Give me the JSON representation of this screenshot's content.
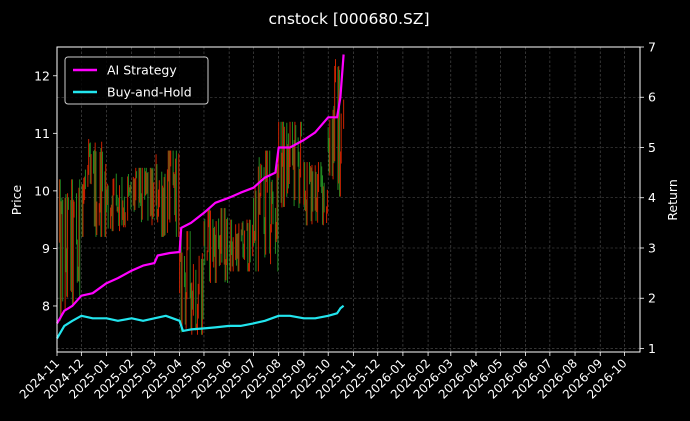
{
  "chart_data": {
    "type": "line",
    "title": "cnstock [000680.SZ]",
    "ylabel_left": "Price",
    "ylabel_right": "Return",
    "xlabel": "",
    "x_tick_labels": [
      "2024-11",
      "2024-12",
      "2025-01",
      "2025-02",
      "2025-03",
      "2025-04",
      "2025-05",
      "2025-06",
      "2025-07",
      "2025-08",
      "2025-09",
      "2025-10",
      "2025-11",
      "2025-12",
      "2026-01",
      "2026-02",
      "2026-03",
      "2026-04",
      "2026-05",
      "2026-06",
      "2026-07",
      "2026-08",
      "2026-09",
      "2026-10"
    ],
    "y_left_ticks": [
      8,
      9,
      10,
      11,
      12
    ],
    "y_right_ticks": [
      1,
      2,
      3,
      4,
      5,
      6,
      7
    ],
    "ylim_left": [
      7.2,
      12.5
    ],
    "ylim_right": [
      0.93,
      7.0
    ],
    "x_range": [
      "2024-11-01",
      "2026-10-20"
    ],
    "data_end": "2025-10-20",
    "grid": true,
    "legend_position": "top-left",
    "price_series": {
      "name": "",
      "colors": {
        "up": "#cc2200",
        "down": "#228b22"
      },
      "months": [
        "2024-11",
        "2024-12",
        "2025-01",
        "2025-02",
        "2025-03",
        "2025-04",
        "2025-05",
        "2025-06",
        "2025-07",
        "2025-08",
        "2025-09",
        "2025-10"
      ],
      "monthly_range": [
        [
          7.5,
          10.2
        ],
        [
          9.2,
          10.9
        ],
        [
          9.3,
          10.3
        ],
        [
          9.4,
          10.4
        ],
        [
          9.2,
          10.7
        ],
        [
          7.5,
          9.3
        ],
        [
          8.4,
          9.7
        ],
        [
          8.6,
          9.5
        ],
        [
          8.6,
          10.7
        ],
        [
          9.7,
          11.2
        ],
        [
          9.4,
          10.5
        ],
        [
          9.9,
          12.3
        ]
      ]
    },
    "series": [
      {
        "name": "AI Strategy",
        "axis": "right",
        "color": "#ff00ff",
        "x": [
          "2024-11-01",
          "2024-11-10",
          "2024-11-20",
          "2024-12-01",
          "2024-12-15",
          "2025-01-01",
          "2025-01-15",
          "2025-02-01",
          "2025-02-15",
          "2025-03-01",
          "2025-03-05",
          "2025-03-20",
          "2025-04-01",
          "2025-04-03",
          "2025-04-15",
          "2025-05-01",
          "2025-05-15",
          "2025-06-01",
          "2025-06-15",
          "2025-07-01",
          "2025-07-15",
          "2025-07-28",
          "2025-08-01",
          "2025-08-15",
          "2025-09-01",
          "2025-09-15",
          "2025-10-01",
          "2025-10-12",
          "2025-10-16",
          "2025-10-20"
        ],
        "values": [
          1.5,
          1.75,
          1.85,
          2.05,
          2.1,
          2.3,
          2.4,
          2.55,
          2.65,
          2.7,
          2.85,
          2.9,
          2.92,
          3.4,
          3.5,
          3.7,
          3.9,
          4.0,
          4.1,
          4.2,
          4.4,
          4.5,
          5.0,
          5.0,
          5.15,
          5.3,
          5.6,
          5.6,
          6.0,
          6.85
        ]
      },
      {
        "name": "Buy-and-Hold",
        "axis": "right",
        "color": "#22e5ee",
        "x": [
          "2024-11-01",
          "2024-11-10",
          "2024-11-20",
          "2024-12-01",
          "2024-12-15",
          "2025-01-01",
          "2025-01-15",
          "2025-02-01",
          "2025-02-15",
          "2025-03-01",
          "2025-03-15",
          "2025-04-01",
          "2025-04-05",
          "2025-04-15",
          "2025-05-01",
          "2025-05-15",
          "2025-06-01",
          "2025-06-15",
          "2025-07-01",
          "2025-07-15",
          "2025-08-01",
          "2025-08-15",
          "2025-09-01",
          "2025-09-15",
          "2025-10-01",
          "2025-10-12",
          "2025-10-16",
          "2025-10-20"
        ],
        "values": [
          1.2,
          1.45,
          1.55,
          1.65,
          1.6,
          1.6,
          1.55,
          1.6,
          1.55,
          1.6,
          1.65,
          1.55,
          1.35,
          1.38,
          1.4,
          1.42,
          1.45,
          1.45,
          1.5,
          1.55,
          1.65,
          1.65,
          1.6,
          1.6,
          1.65,
          1.7,
          1.8,
          1.85
        ]
      }
    ]
  }
}
